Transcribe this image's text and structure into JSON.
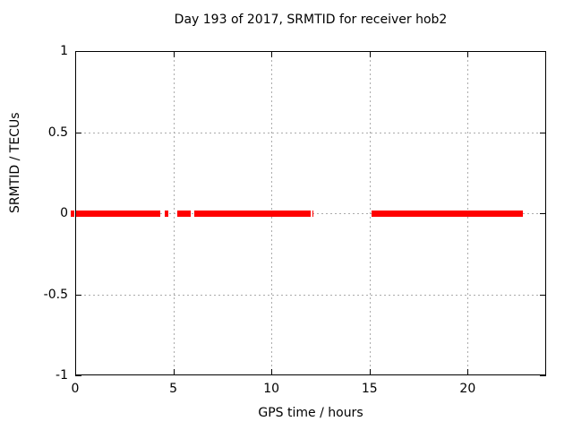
{
  "title": "Day 193 of 2017, SRMTID for receiver hob2",
  "chart_data": {
    "type": "line",
    "title": "Day 193 of 2017, SRMTID for receiver hob2",
    "xlabel": "GPS time / hours",
    "ylabel": "SRMTID / TECUs",
    "xlim": [
      0,
      24
    ],
    "ylim": [
      -1,
      1
    ],
    "xticks": [
      0,
      5,
      10,
      15,
      20
    ],
    "xtick_labels": [
      "0",
      "5",
      "10",
      "15",
      "20"
    ],
    "yticks": [
      1,
      0.5,
      0,
      -0.5,
      -1
    ],
    "ytick_labels": [
      "1",
      "0.5",
      "0",
      "-0.5",
      "-1"
    ],
    "grid": true,
    "legend": "none",
    "series": [
      {
        "name": "SRMTID",
        "color": "#ff0000",
        "y_value": 0,
        "segments_hours": [
          [
            0.0,
            4.35
          ],
          [
            4.55,
            4.75
          ],
          [
            5.2,
            5.9
          ],
          [
            6.05,
            12.0
          ],
          [
            12.07,
            12.15
          ],
          [
            15.1,
            22.8
          ]
        ]
      }
    ],
    "pre_axis_dash_hours": [
      -0.22,
      -0.05
    ],
    "colors": {
      "line": "#ff0000",
      "grid": "#ababab",
      "axis": "#000000",
      "background": "#ffffff"
    }
  }
}
